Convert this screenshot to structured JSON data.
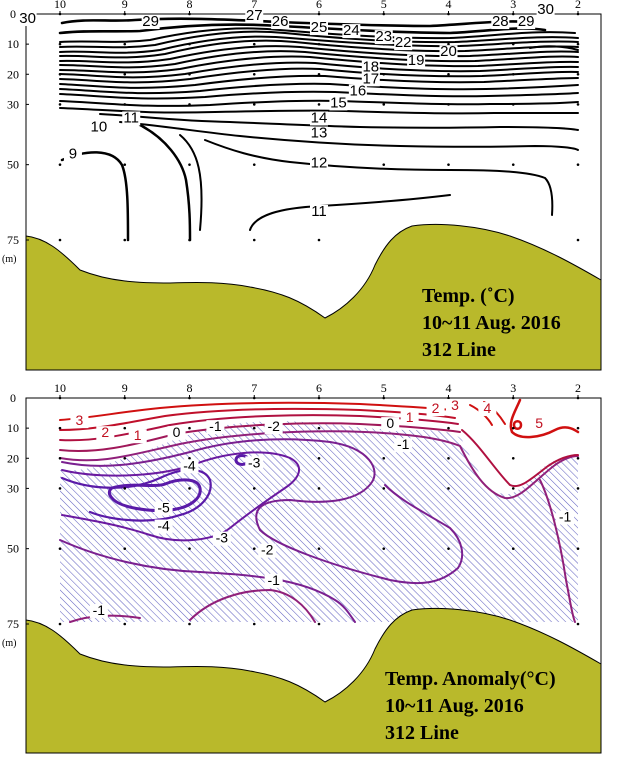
{
  "colors": {
    "seabed": "#b9b92b",
    "frame": "#000000",
    "hatch": "#4a4ab8",
    "warm": "#d01010",
    "cool": "#5a1aa8"
  },
  "chart_data": [
    {
      "type": "contour",
      "title_lines": [
        "Temp. (˚C)",
        "10~11 Aug. 2016",
        "312 Line"
      ],
      "x_stations": [
        "10",
        "9",
        "8",
        "7",
        "6",
        "5",
        "4",
        "3",
        "2"
      ],
      "y_ticks": [
        "0",
        "10",
        "20",
        "30",
        "50",
        "75"
      ],
      "y_unit": "(m)",
      "contour_labels": [
        {
          "t": "30",
          "x": 10.5,
          "y": 3
        },
        {
          "t": "29",
          "x": 8.6,
          "y": 4
        },
        {
          "t": "27",
          "x": 7.0,
          "y": 2
        },
        {
          "t": "26",
          "x": 6.6,
          "y": 4
        },
        {
          "t": "25",
          "x": 6.0,
          "y": 6
        },
        {
          "t": "24",
          "x": 5.5,
          "y": 7
        },
        {
          "t": "23",
          "x": 5.0,
          "y": 9
        },
        {
          "t": "22",
          "x": 4.7,
          "y": 11
        },
        {
          "t": "20",
          "x": 4.0,
          "y": 14
        },
        {
          "t": "19",
          "x": 4.5,
          "y": 17
        },
        {
          "t": "18",
          "x": 5.2,
          "y": 19
        },
        {
          "t": "17",
          "x": 5.2,
          "y": 23
        },
        {
          "t": "16",
          "x": 5.4,
          "y": 27
        },
        {
          "t": "15",
          "x": 5.7,
          "y": 31
        },
        {
          "t": "14",
          "x": 6.0,
          "y": 36
        },
        {
          "t": "13",
          "x": 6.0,
          "y": 41
        },
        {
          "t": "12",
          "x": 6.0,
          "y": 51
        },
        {
          "t": "11",
          "x": 8.9,
          "y": 36
        },
        {
          "t": "10",
          "x": 9.4,
          "y": 39
        },
        {
          "t": "9",
          "x": 9.8,
          "y": 48
        },
        {
          "t": "11",
          "x": 6.0,
          "y": 67
        },
        {
          "t": "28",
          "x": 3.2,
          "y": 4
        },
        {
          "t": "29",
          "x": 2.8,
          "y": 4
        },
        {
          "t": "30",
          "x": 2.5,
          "y": 0
        }
      ]
    },
    {
      "type": "contour",
      "title_lines": [
        "Temp. Anomaly(°C)",
        "10~11 Aug. 2016",
        "312 Line"
      ],
      "x_stations": [
        "10",
        "9",
        "8",
        "7",
        "6",
        "5",
        "4",
        "3",
        "2"
      ],
      "y_ticks": [
        "0",
        "10",
        "20",
        "30",
        "50",
        "75"
      ],
      "y_unit": "(m)",
      "contour_labels": [
        {
          "t": "3",
          "x": 9.7,
          "y": 9
        },
        {
          "t": "2",
          "x": 9.3,
          "y": 13
        },
        {
          "t": "1",
          "x": 8.8,
          "y": 14
        },
        {
          "t": "0",
          "x": 8.2,
          "y": 13
        },
        {
          "t": "-1",
          "x": 7.6,
          "y": 11
        },
        {
          "t": "-2",
          "x": 6.7,
          "y": 11
        },
        {
          "t": "-3",
          "x": 7.0,
          "y": 23
        },
        {
          "t": "-4",
          "x": 8.0,
          "y": 24
        },
        {
          "t": "-5",
          "x": 8.4,
          "y": 38
        },
        {
          "t": "-4",
          "x": 8.4,
          "y": 44
        },
        {
          "t": "-3",
          "x": 7.5,
          "y": 48
        },
        {
          "t": "-2",
          "x": 6.8,
          "y": 52
        },
        {
          "t": "-1",
          "x": 6.7,
          "y": 62
        },
        {
          "t": "-1",
          "x": 9.4,
          "y": 72
        },
        {
          "t": "0",
          "x": 4.9,
          "y": 10
        },
        {
          "t": "1",
          "x": 4.6,
          "y": 8
        },
        {
          "t": "2",
          "x": 4.2,
          "y": 5
        },
        {
          "t": "3",
          "x": 3.9,
          "y": 4
        },
        {
          "t": "4",
          "x": 3.4,
          "y": 5
        },
        {
          "t": "5",
          "x": 2.6,
          "y": 10
        },
        {
          "t": "-1",
          "x": 4.7,
          "y": 17
        },
        {
          "t": "-1",
          "x": 2.2,
          "y": 41
        }
      ]
    }
  ]
}
